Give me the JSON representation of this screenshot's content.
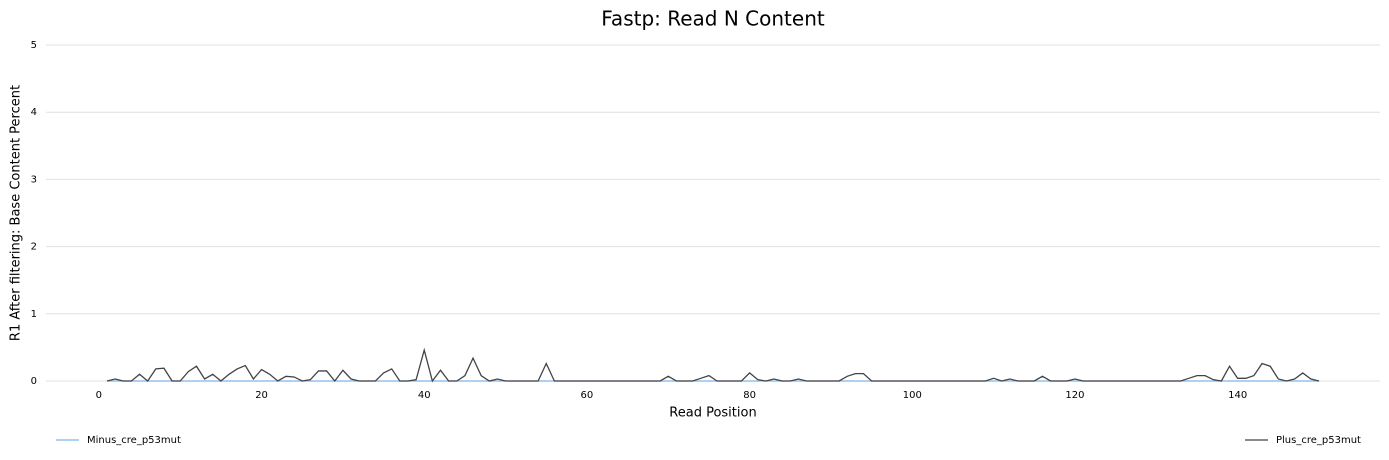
{
  "chart_data": {
    "type": "line",
    "title": "Fastp: Read N Content",
    "xlabel": "Read Position",
    "ylabel": "R1 After filtering: Base Content Percent",
    "x": [
      1,
      2,
      3,
      4,
      5,
      6,
      7,
      8,
      9,
      10,
      11,
      12,
      13,
      14,
      15,
      16,
      17,
      18,
      19,
      20,
      21,
      22,
      23,
      24,
      25,
      26,
      27,
      28,
      29,
      30,
      31,
      32,
      33,
      34,
      35,
      36,
      37,
      38,
      39,
      40,
      41,
      42,
      43,
      44,
      45,
      46,
      47,
      48,
      49,
      50,
      51,
      52,
      53,
      54,
      55,
      56,
      57,
      58,
      59,
      60,
      61,
      62,
      63,
      64,
      65,
      66,
      67,
      68,
      69,
      70,
      71,
      72,
      73,
      74,
      75,
      76,
      77,
      78,
      79,
      80,
      81,
      82,
      83,
      84,
      85,
      86,
      87,
      88,
      89,
      90,
      91,
      92,
      93,
      94,
      95,
      96,
      97,
      98,
      99,
      100,
      101,
      102,
      103,
      104,
      105,
      106,
      107,
      108,
      109,
      110,
      111,
      112,
      113,
      114,
      115,
      116,
      117,
      118,
      119,
      120,
      121,
      122,
      123,
      124,
      125,
      126,
      127,
      128,
      129,
      130,
      131,
      132,
      133,
      134,
      135,
      136,
      137,
      138,
      139,
      140,
      141,
      142,
      143,
      144,
      145,
      146,
      147,
      148,
      149,
      150
    ],
    "series": [
      {
        "name": "Minus_cre_p53mut",
        "color": "#7cb5ec",
        "values": [
          0,
          0,
          0,
          0,
          0,
          0,
          0,
          0,
          0,
          0,
          0,
          0,
          0,
          0,
          0,
          0,
          0,
          0,
          0,
          0,
          0,
          0,
          0,
          0,
          0,
          0,
          0,
          0,
          0,
          0,
          0,
          0,
          0,
          0,
          0,
          0,
          0,
          0,
          0,
          0,
          0,
          0,
          0,
          0,
          0,
          0,
          0,
          0,
          0,
          0,
          0,
          0,
          0,
          0,
          0,
          0,
          0,
          0,
          0,
          0,
          0,
          0,
          0,
          0,
          0,
          0,
          0,
          0,
          0,
          0,
          0,
          0,
          0,
          0,
          0,
          0,
          0,
          0,
          0,
          0,
          0,
          0,
          0,
          0,
          0,
          0,
          0,
          0,
          0,
          0,
          0,
          0,
          0,
          0,
          0,
          0,
          0,
          0,
          0,
          0,
          0,
          0,
          0,
          0,
          0,
          0,
          0,
          0,
          0,
          0,
          0,
          0,
          0,
          0,
          0,
          0,
          0,
          0,
          0,
          0,
          0,
          0,
          0,
          0,
          0,
          0,
          0,
          0,
          0,
          0,
          0,
          0,
          0,
          0,
          0,
          0,
          0,
          0,
          0,
          0,
          0,
          0,
          0,
          0,
          0,
          0,
          0,
          0,
          0,
          0
        ]
      },
      {
        "name": "Plus_cre_p53mut",
        "color": "#434348",
        "values": [
          0,
          0.03,
          0,
          0,
          0.1,
          0,
          0.18,
          0.19,
          0,
          0,
          0.14,
          0.22,
          0.03,
          0.1,
          0,
          0.1,
          0.18,
          0.23,
          0.03,
          0.17,
          0.1,
          0,
          0.07,
          0.06,
          0,
          0.02,
          0.15,
          0.15,
          0,
          0.16,
          0.03,
          0,
          0,
          0,
          0.12,
          0.18,
          0,
          0,
          0.02,
          0.46,
          0,
          0.16,
          0,
          0,
          0.08,
          0.34,
          0.08,
          0,
          0.03,
          0,
          0,
          0,
          0,
          0,
          0.26,
          0,
          0,
          0,
          0,
          0,
          0,
          0,
          0,
          0,
          0,
          0,
          0,
          0,
          0,
          0.07,
          0,
          0,
          0,
          0.04,
          0.08,
          0,
          0,
          0,
          0,
          0.12,
          0.02,
          0,
          0.03,
          0,
          0,
          0.03,
          0,
          0,
          0,
          0,
          0,
          0.07,
          0.11,
          0.11,
          0,
          0,
          0,
          0,
          0,
          0,
          0,
          0,
          0,
          0,
          0,
          0,
          0,
          0,
          0,
          0.04,
          0,
          0.03,
          0,
          0,
          0,
          0.07,
          0,
          0,
          0,
          0.03,
          0,
          0,
          0,
          0,
          0,
          0,
          0,
          0,
          0,
          0,
          0,
          0,
          0,
          0.04,
          0.08,
          0.08,
          0.02,
          0,
          0.22,
          0.04,
          0.04,
          0.08,
          0.26,
          0.22,
          0.03,
          0,
          0.03,
          0.12,
          0.03,
          0
        ]
      }
    ],
    "xlim": [
      -6.5,
      157.5
    ],
    "xticks": [
      0,
      20,
      40,
      60,
      80,
      100,
      120,
      140
    ],
    "ylim": [
      0,
      5
    ],
    "yticks": [
      0,
      1,
      2,
      3,
      4,
      5
    ],
    "grid": true
  }
}
